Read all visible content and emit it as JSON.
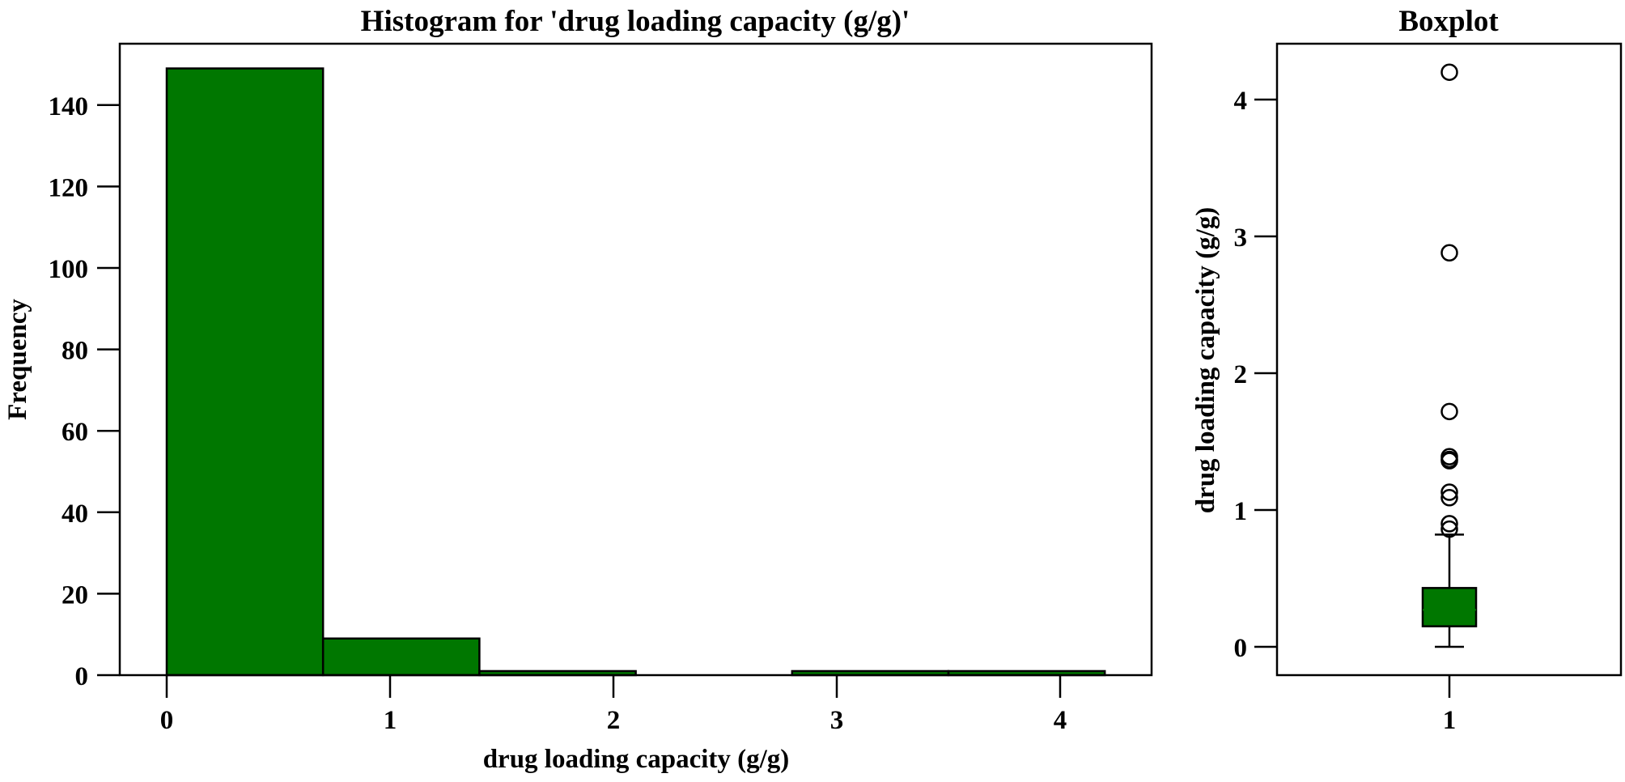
{
  "chart_data": [
    {
      "type": "bar",
      "subtype": "histogram",
      "title": "Histogram for 'drug loading capacity (g/g)'",
      "xlabel": "drug loading capacity (g/g)",
      "ylabel": "Frequency",
      "bins": [
        {
          "start": 0.0,
          "end": 0.7,
          "count": 149
        },
        {
          "start": 0.7,
          "end": 1.4,
          "count": 9
        },
        {
          "start": 1.4,
          "end": 2.1,
          "count": 1
        },
        {
          "start": 2.1,
          "end": 2.8,
          "count": 0
        },
        {
          "start": 2.8,
          "end": 3.5,
          "count": 1
        },
        {
          "start": 3.5,
          "end": 4.2,
          "count": 1
        }
      ],
      "categories": [
        "0-0.7",
        "0.7-1.4",
        "1.4-2.1",
        "2.1-2.8",
        "2.8-3.5",
        "3.5-4.2"
      ],
      "values": [
        149,
        9,
        1,
        0,
        1,
        1
      ],
      "xticks": [
        0,
        1,
        2,
        3,
        4
      ],
      "yticks": [
        0,
        20,
        40,
        60,
        80,
        100,
        120,
        140
      ],
      "xlim": [
        -0.2,
        4.55
      ],
      "ylim": [
        0,
        157
      ],
      "bar_color": "#007700",
      "grid": false,
      "legend": null
    },
    {
      "type": "box",
      "title": "Boxplot",
      "xlabel": "",
      "ylabel": "drug loading capacity (g/g)",
      "categories": [
        "1"
      ],
      "xticks": [
        "1"
      ],
      "yticks": [
        0,
        1,
        2,
        3,
        4
      ],
      "ylim": [
        -0.2,
        4.3
      ],
      "box": {
        "whisker_low": 0.0,
        "q1": 0.15,
        "median": 0.27,
        "q3": 0.43,
        "whisker_high": 0.82
      },
      "outliers": [
        0.86,
        0.9,
        1.09,
        1.13,
        1.36,
        1.37,
        1.39,
        1.72,
        2.88,
        4.2
      ],
      "box_color": "#007700",
      "grid": false
    }
  ]
}
